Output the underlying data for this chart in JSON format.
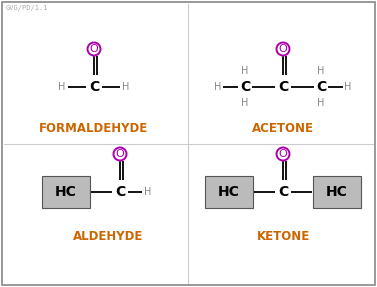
{
  "bg_color": "#ffffff",
  "border_color": "#888888",
  "title_color": "#cc6600",
  "carbon_color": "#000000",
  "hydrogen_color": "#888888",
  "oxygen_color": "#aa00aa",
  "box_color": "#bbbbbb",
  "bond_color": "#000000",
  "watermark": "GVG/PD/1.1",
  "formaldehyde_label": "FORMALDEHYDE",
  "acetone_label": "ACETONE",
  "aldehyde_label": "ALDEHYDE",
  "ketone_label": "KETONE",
  "divider_color": "#cccccc"
}
